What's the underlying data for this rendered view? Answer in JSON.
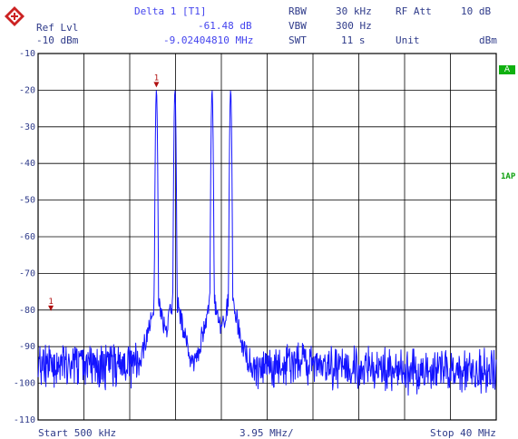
{
  "header": {
    "ref_lvl_label": "Ref Lvl",
    "ref_lvl_value": "-10 dBm",
    "marker_label": "Delta 1 [T1]",
    "marker_db": "-61.48 dB",
    "marker_freq": "-9.02404810 MHz",
    "rbw_label": "RBW",
    "rbw_value": "30 kHz",
    "vbw_label": "VBW",
    "vbw_value": "300 Hz",
    "swt_label": "SWT",
    "swt_value": "11 s",
    "rf_att_label": "RF Att",
    "rf_att_value": "10 dB",
    "unit_label": "Unit",
    "unit_value": "dBm"
  },
  "side": {
    "a_badge": "A",
    "ap_badge": "1AP"
  },
  "footer": {
    "start": "Start 500 kHz",
    "span": "3.95 MHz/",
    "stop": "Stop 40 MHz"
  },
  "colors": {
    "trace": "#1414ff",
    "grid": "#000000",
    "text": "#2f3b8a",
    "marker": "#b01010",
    "badge": "#10b010"
  },
  "chart_data": {
    "type": "line",
    "xlabel": "",
    "ylabel": "",
    "x_unit": "MHz",
    "y_unit": "dBm",
    "xlim": [
      0.5,
      40
    ],
    "ylim": [
      -110,
      -10
    ],
    "y_ticks": [
      -10,
      -20,
      -30,
      -40,
      -50,
      -60,
      -70,
      -80,
      -90,
      -100,
      -110
    ],
    "y_tick_labels": [
      "-10",
      "-20",
      "-30",
      "-40",
      "-50",
      "-60",
      "-70",
      "-80",
      "-90",
      "-100",
      "-110"
    ],
    "grid": true,
    "noise_floor_dbm": -95,
    "peaks": [
      {
        "x": 10.7,
        "y": -20
      },
      {
        "x": 12.3,
        "y": -20
      },
      {
        "x": 15.5,
        "y": -20
      },
      {
        "x": 17.1,
        "y": -20
      }
    ],
    "markers": [
      {
        "label": "1",
        "x": 10.7,
        "y": -20
      },
      {
        "label": "1",
        "x": 1.6,
        "y": -81
      }
    ]
  }
}
